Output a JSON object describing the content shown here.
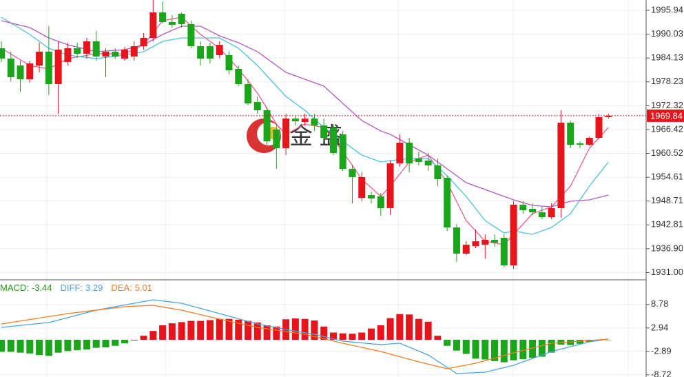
{
  "watermark": "金 盛",
  "chart_data": [
    {
      "type": "candlestick",
      "up_color": "#e8141b",
      "down_color": "#1aa51a",
      "open": [
        1986.55,
        1983.99,
        1982.28,
        1978.87,
        1982.28,
        1985.7,
        1977.67,
        1983.14,
        1986.55,
        1985.19,
        1988.26,
        1984.5,
        1985.7,
        1983.99,
        1984.5,
        1987.06,
        1989.11,
        1995.43,
        1993.04,
        1995.09,
        1992.53,
        1987.06,
        1987.06,
        1984.84,
        1984.84,
        1981.43,
        1977.67,
        1973.24,
        1971.19,
        1966.41,
        1961.8,
        1969.14,
        1968.29,
        1969.14,
        1967.43,
        1966.92,
        1965.21,
        1956.68,
        1949.51,
        1950.19,
        1949.85,
        1946.95,
        1958.04,
        1963.17,
        1959.24,
        1958.73,
        1957.53,
        1954.46,
        1942.17,
        1935.68,
        1937.56,
        1937.9,
        1939.1,
        1939.61,
        1932.78,
        1947.8,
        1946.78,
        1945.92,
        1944.73,
        1946.95,
        1968.12,
        1962.99,
        1962.65,
        1964.36,
        1969.48
      ],
      "high": [
        1988.26,
        1985.7,
        1983.48,
        1983.48,
        1987.92,
        1992.01,
        1988.26,
        1987.92,
        1987.92,
        1989.11,
        1990.82,
        1986.55,
        1986.55,
        1986.89,
        1988.26,
        1990.31,
        1998.5,
        1998.16,
        1994.74,
        1995.43,
        1993.38,
        1988.26,
        1987.92,
        1988.26,
        1985.7,
        1982.28,
        1978.87,
        1974.6,
        1972.04,
        1967.77,
        1970.33,
        1969.82,
        1970.33,
        1970.33,
        1969.14,
        1967.77,
        1966.07,
        1957.53,
        1955.82,
        1951.05,
        1950.7,
        1958.73,
        1965.21,
        1964.36,
        1960.95,
        1960.6,
        1959.24,
        1954.97,
        1943.02,
        1938.75,
        1941.66,
        1940.46,
        1940.46,
        1940.46,
        1948.66,
        1948.66,
        1948.14,
        1947.29,
        1948.14,
        1971.19,
        1968.63,
        1963.51,
        1964.7,
        1970.33,
        1970.33
      ],
      "low": [
        1983.14,
        1978.36,
        1975.8,
        1978.02,
        1980.58,
        1974.94,
        1970.33,
        1982.28,
        1984.16,
        1983.99,
        1983.48,
        1979.38,
        1983.99,
        1983.48,
        1983.48,
        1986.21,
        1988.26,
        1992.7,
        1991.67,
        1991.67,
        1986.55,
        1982.28,
        1982.8,
        1984.16,
        1980.06,
        1977.16,
        1972.55,
        1970.33,
        1961.8,
        1956.68,
        1960.09,
        1967.43,
        1967.43,
        1966.07,
        1963.51,
        1960.09,
        1956.17,
        1948.14,
        1948.66,
        1948.14,
        1945.07,
        1945.24,
        1957.19,
        1955.82,
        1957.53,
        1956.17,
        1952.41,
        1941.32,
        1933.63,
        1935.34,
        1937.05,
        1934.49,
        1937.39,
        1932.27,
        1931.93,
        1945.58,
        1945.24,
        1944.22,
        1944.22,
        1944.56,
        1961.8,
        1961.8,
        1962.31,
        1964.02,
        1969.14
      ],
      "close": [
        1983.99,
        1979.38,
        1978.87,
        1982.8,
        1985.7,
        1977.67,
        1986.21,
        1986.55,
        1985.19,
        1988.26,
        1984.5,
        1985.7,
        1984.5,
        1986.21,
        1987.06,
        1989.11,
        1995.43,
        1993.04,
        1992.35,
        1992.53,
        1987.06,
        1983.99,
        1983.99,
        1987.4,
        1981.09,
        1977.67,
        1972.89,
        1971.19,
        1963.51,
        1961.8,
        1969.14,
        1968.46,
        1969.14,
        1967.43,
        1964.36,
        1960.6,
        1956.68,
        1954.63,
        1954.63,
        1949.34,
        1946.95,
        1958.04,
        1963.17,
        1958.04,
        1958.39,
        1957.53,
        1954.12,
        1942.17,
        1935.68,
        1937.9,
        1938.75,
        1939.1,
        1938.41,
        1932.78,
        1947.8,
        1946.44,
        1945.92,
        1944.73,
        1946.95,
        1968.12,
        1962.65,
        1962.65,
        1964.36,
        1969.48,
        1969.84
      ],
      "overlays": [
        {
          "color": "#ee5b8f",
          "x": [
            0,
            3,
            5,
            7,
            10,
            13,
            15,
            17,
            19,
            21,
            23,
            25,
            27,
            29,
            30,
            32,
            34,
            36,
            38,
            40,
            41,
            43,
            45,
            47,
            49,
            51,
            53,
            54,
            56,
            58,
            60,
            62,
            64
          ],
          "values": [
            1986.55,
            1982.28,
            1981.43,
            1983.99,
            1985.19,
            1985.19,
            1987.4,
            1993.38,
            1994.23,
            1989.96,
            1986.55,
            1981.43,
            1975.46,
            1967.77,
            1965.21,
            1967.77,
            1966.92,
            1960.95,
            1954.12,
            1949.85,
            1952.41,
            1958.39,
            1960.09,
            1953.26,
            1943.88,
            1938.75,
            1937.9,
            1940.46,
            1945.58,
            1947.29,
            1952.41,
            1961.8,
            1966.92
          ]
        },
        {
          "color": "#46c3df",
          "x": [
            0,
            3,
            5,
            7,
            10,
            13,
            15,
            17,
            19,
            21,
            23,
            25,
            27,
            29,
            30,
            32,
            34,
            36,
            38,
            40,
            41,
            43,
            45,
            47,
            49,
            51,
            53,
            54,
            56,
            58,
            60,
            62,
            64
          ],
          "values": [
            1994.23,
            1989.96,
            1986.55,
            1984.84,
            1983.99,
            1984.84,
            1985.7,
            1988.26,
            1989.11,
            1989.11,
            1989.11,
            1986.55,
            1982.28,
            1977.16,
            1974.6,
            1971.19,
            1966.92,
            1963.51,
            1960.09,
            1958.39,
            1958.73,
            1959.24,
            1959.24,
            1954.97,
            1949.85,
            1943.88,
            1940.8,
            1941.32,
            1940.46,
            1942.17,
            1945.58,
            1952.41,
            1958.39
          ]
        },
        {
          "color": "#b459c6",
          "x": [
            0,
            3,
            5,
            7,
            10,
            13,
            15,
            17,
            19,
            21,
            23,
            25,
            27,
            29,
            30,
            32,
            34,
            36,
            38,
            40,
            41,
            43,
            45,
            47,
            49,
            51,
            53,
            54,
            56,
            58,
            60,
            62,
            64
          ],
          "values": [
            1993.38,
            1991.67,
            1989.11,
            1987.4,
            1985.7,
            1986.21,
            1987.4,
            1989.96,
            1992.01,
            1992.01,
            1989.62,
            1987.92,
            1985.7,
            1982.28,
            1980.58,
            1978.87,
            1977.16,
            1972.89,
            1968.63,
            1966.07,
            1965.21,
            1962.65,
            1960.09,
            1956.68,
            1953.26,
            1951.56,
            1949.85,
            1949.0,
            1947.63,
            1947.29,
            1948.66,
            1949.0,
            1950.19
          ]
        }
      ],
      "current_price": 1969.84,
      "current_price_color": "#e8141b",
      "ylim": [
        1929.37,
        1998.5
      ],
      "yticks": [
        1995.94,
        1990.03,
        1984.13,
        1978.23,
        1972.32,
        1966.42,
        1960.52,
        1954.61,
        1948.71,
        1942.81,
        {
          "value": 1936.9,
          "label": "1936.90"
        },
        {
          "value": 1931,
          "label": "1931.00"
        }
      ],
      "grid": true
    },
    {
      "type": "macd",
      "up_color": "#e8141b",
      "down_color": "#1aa51a",
      "values": [
        -3.0,
        -3.0,
        -3.2,
        -3.4,
        -3.8,
        -4.0,
        -3.2,
        -2.8,
        -2.6,
        -2.4,
        -2.0,
        -1.9,
        -1.5,
        -0.9,
        -0.2,
        1.0,
        2.2,
        3.6,
        4.1,
        4.4,
        4.7,
        4.7,
        4.9,
        5.2,
        5.2,
        5.0,
        4.7,
        4.3,
        3.6,
        3.3,
        5.1,
        5.3,
        5.2,
        4.8,
        3.3,
        1.8,
        1.6,
        1.5,
        1.8,
        2.8,
        3.6,
        5.4,
        6.4,
        6.3,
        5.2,
        4.5,
        1.0,
        -1.5,
        -2.7,
        -3.5,
        -4.7,
        -4.9,
        -5.3,
        -5.6,
        -5.1,
        -4.8,
        -4.5,
        -4.2,
        -3.2,
        -1.2,
        -1.3,
        -1.0,
        -0.5,
        -0.2,
        -0.05
      ],
      "series": [
        {
          "name": "DIFF:",
          "color": "#4aa3df",
          "x": [
            0,
            5,
            10,
            16,
            19,
            23,
            27,
            30,
            33,
            36,
            40,
            42,
            45,
            48,
            51,
            54,
            58,
            62,
            64
          ],
          "values": [
            3.09,
            4.29,
            7.38,
            9.95,
            9.09,
            6.52,
            3.95,
            2.57,
            1.37,
            -0.34,
            -1.2,
            -0.86,
            -3.77,
            -8.4,
            -8.06,
            -6.35,
            -2.92,
            -0.51,
            0.17
          ]
        },
        {
          "name": "DEA:",
          "color": "#f07c28",
          "x": [
            0,
            7,
            13,
            16,
            19,
            23,
            27,
            32,
            36,
            40,
            44,
            47,
            50,
            54,
            58,
            62,
            64
          ],
          "values": [
            3.95,
            6.52,
            8.23,
            8.58,
            7.38,
            5.15,
            3.09,
            1.37,
            -0.86,
            -2.92,
            -5.49,
            -7.2,
            -5.83,
            -3.26,
            -0.86,
            -0.17,
            0.17
          ]
        }
      ],
      "legend": [
        {
          "label": "MACD:",
          "value": -3.44,
          "color": "#1a9a1a"
        },
        {
          "label": "DIFF:",
          "value": 3.29,
          "color": "#4aa3df"
        },
        {
          "label": "DEA:",
          "value": 5.01,
          "color": "#f07c28"
        }
      ],
      "ylim": [
        -9.26,
        14.75
      ],
      "yticks": [
        8.78,
        2.94,
        -2.89,
        -8.72
      ],
      "grid": true
    }
  ]
}
